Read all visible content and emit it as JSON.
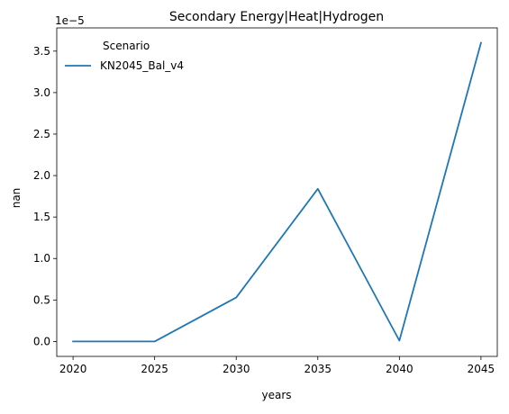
{
  "chart_data": {
    "type": "line",
    "title": "Secondary Energy|Heat|Hydrogen",
    "xlabel": "years",
    "ylabel": "nan",
    "y_offset_text": "1e−5",
    "xlim": [
      2019.0,
      2046.0
    ],
    "ylim": [
      -1.8e-06,
      3.78e-05
    ],
    "x_ticks": [
      2020,
      2025,
      2030,
      2035,
      2040,
      2045
    ],
    "y_ticks": [
      0.0,
      5e-06,
      1e-05,
      1.5e-05,
      2e-05,
      2.5e-05,
      3e-05,
      3.5e-05
    ],
    "x_tick_labels": [
      "2020",
      "2025",
      "2030",
      "2035",
      "2040",
      "2045"
    ],
    "y_tick_labels": [
      "0.0",
      "0.5",
      "1.0",
      "1.5",
      "2.0",
      "2.5",
      "3.0",
      "3.5"
    ],
    "legend": {
      "title": "Scenario",
      "placement": "upper-left"
    },
    "grid": false,
    "x": [
      2020,
      2025,
      2030,
      2035,
      2040,
      2045
    ],
    "series": [
      {
        "name": "KN2045_Bal_v4",
        "color": "#1f77b4",
        "values": [
          0.0,
          0.0,
          5.3e-06,
          1.84e-05,
          1e-07,
          3.6e-05
        ]
      }
    ]
  }
}
